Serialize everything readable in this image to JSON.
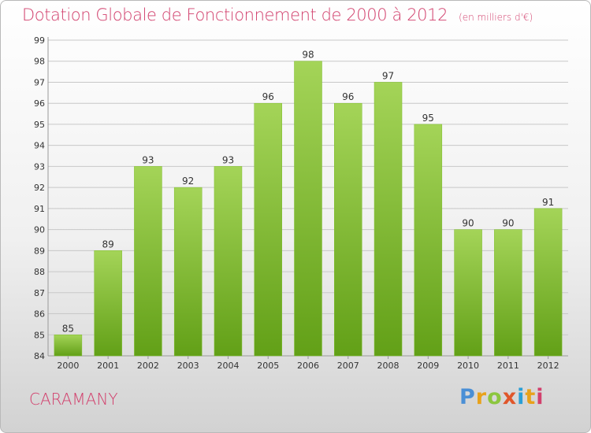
{
  "title": "Dotation Globale de Fonctionnement de 2000 à 2012",
  "unit": "(en milliers d'€)",
  "commune": "CARAMANY",
  "logo": "Proxiti",
  "colors": {
    "title": "#d2406d",
    "bar_top": "#a4d458",
    "bar_bottom": "#62a017",
    "grid": "#c8c8c8"
  },
  "chart_data": {
    "type": "bar",
    "title": "Dotation Globale de Fonctionnement de 2000 à 2012",
    "subtitle": "(en milliers d'€)",
    "xlabel": "",
    "ylabel": "",
    "categories": [
      "2000",
      "2001",
      "2002",
      "2003",
      "2004",
      "2005",
      "2006",
      "2007",
      "2008",
      "2009",
      "2010",
      "2011",
      "2012"
    ],
    "values": [
      85,
      89,
      93,
      92,
      93,
      96,
      98,
      96,
      97,
      95,
      90,
      90,
      91
    ],
    "ylim": [
      84,
      99
    ],
    "yticks": [
      84,
      85,
      86,
      87,
      88,
      89,
      90,
      91,
      92,
      93,
      94,
      95,
      96,
      97,
      98,
      99
    ],
    "grid": true,
    "legend": "none"
  }
}
